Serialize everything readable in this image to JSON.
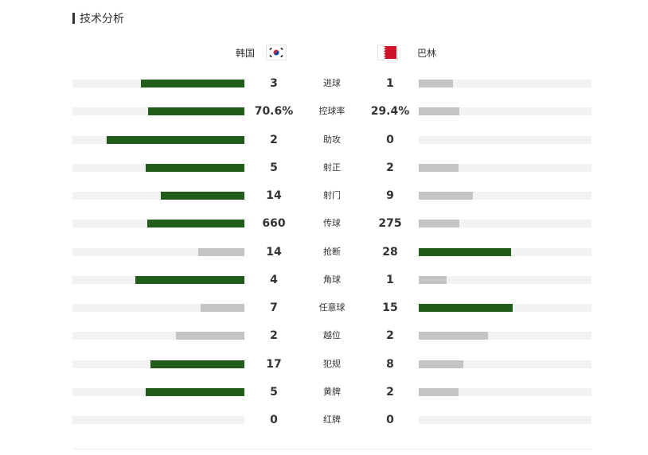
{
  "section": {
    "title": "技术分析"
  },
  "teams": {
    "home": {
      "name": "韩国",
      "flag_icon": "south-korea-flag-icon"
    },
    "away": {
      "name": "巴林",
      "flag_icon": "bahrain-flag-icon"
    }
  },
  "colors": {
    "leader": "#225c1a",
    "trailer": "#c4c4c4",
    "track": "#f2f2f2"
  },
  "stats": [
    {
      "label": "进球",
      "home": "3",
      "away": "1",
      "home_share": 0.6,
      "away_share": 0.2,
      "leader": "home"
    },
    {
      "label": "控球率",
      "home": "70.6%",
      "away": "29.4%",
      "home_share": 0.562,
      "away_share": 0.235,
      "leader": "home"
    },
    {
      "label": "助攻",
      "home": "2",
      "away": "0",
      "home_share": 0.802,
      "away_share": 0.0,
      "leader": "home"
    },
    {
      "label": "射正",
      "home": "5",
      "away": "2",
      "home_share": 0.575,
      "away_share": 0.23,
      "leader": "home"
    },
    {
      "label": "射门",
      "home": "14",
      "away": "9",
      "home_share": 0.488,
      "away_share": 0.313,
      "leader": "home"
    },
    {
      "label": "传球",
      "home": "660",
      "away": "275",
      "home_share": 0.566,
      "away_share": 0.235,
      "leader": "home"
    },
    {
      "label": "抢断",
      "home": "14",
      "away": "28",
      "home_share": 0.268,
      "away_share": 0.535,
      "leader": "away"
    },
    {
      "label": "角球",
      "home": "4",
      "away": "1",
      "home_share": 0.635,
      "away_share": 0.161,
      "leader": "home"
    },
    {
      "label": "任意球",
      "home": "7",
      "away": "15",
      "home_share": 0.254,
      "away_share": 0.545,
      "leader": "away"
    },
    {
      "label": "越位",
      "home": "2",
      "away": "2",
      "home_share": 0.398,
      "away_share": 0.401,
      "leader": "none"
    },
    {
      "label": "犯规",
      "home": "17",
      "away": "8",
      "home_share": 0.547,
      "away_share": 0.258,
      "leader": "home"
    },
    {
      "label": "黄牌",
      "home": "5",
      "away": "2",
      "home_share": 0.575,
      "away_share": 0.23,
      "leader": "home"
    },
    {
      "label": "红牌",
      "home": "0",
      "away": "0",
      "home_share": 0.0,
      "away_share": 0.0,
      "leader": "none"
    }
  ]
}
